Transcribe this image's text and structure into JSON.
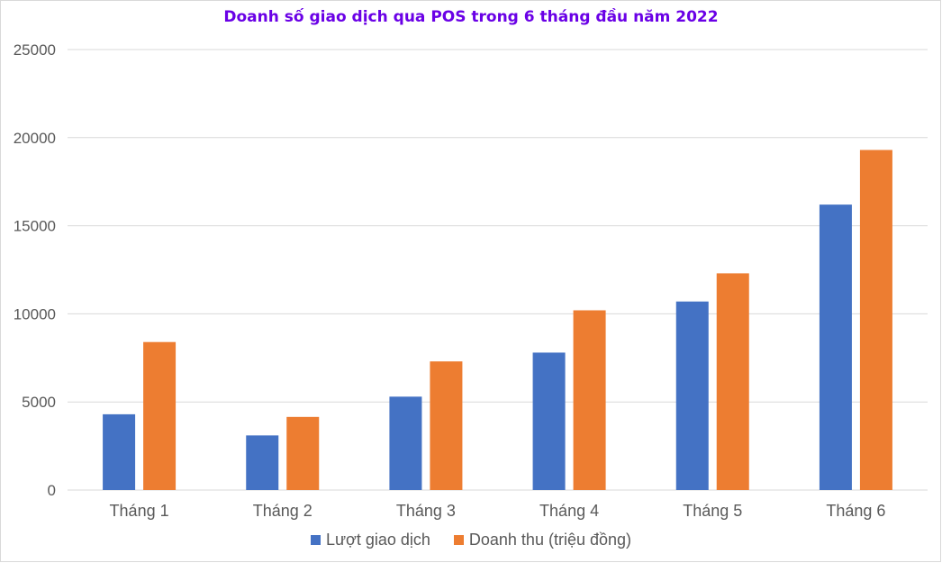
{
  "chart_data": {
    "type": "bar",
    "title": "Doanh số giao dịch qua POS trong 6 tháng đầu năm 2022",
    "categories": [
      "Tháng 1",
      "Tháng 2",
      "Tháng 3",
      "Tháng 4",
      "Tháng 5",
      "Tháng 6"
    ],
    "series": [
      {
        "name": "Lượt giao dịch",
        "color": "#4472c4",
        "values": [
          4300,
          3100,
          5300,
          7800,
          10700,
          16200
        ]
      },
      {
        "name": "Doanh thu (triệu đồng)",
        "color": "#ed7d31",
        "values": [
          8400,
          4150,
          7300,
          10200,
          12300,
          19300
        ]
      }
    ],
    "ylim": [
      0,
      25000
    ],
    "yticks": [
      0,
      5000,
      10000,
      15000,
      20000,
      25000
    ],
    "grid": true,
    "legend_position": "bottom",
    "title_color": "#6a00e6"
  }
}
